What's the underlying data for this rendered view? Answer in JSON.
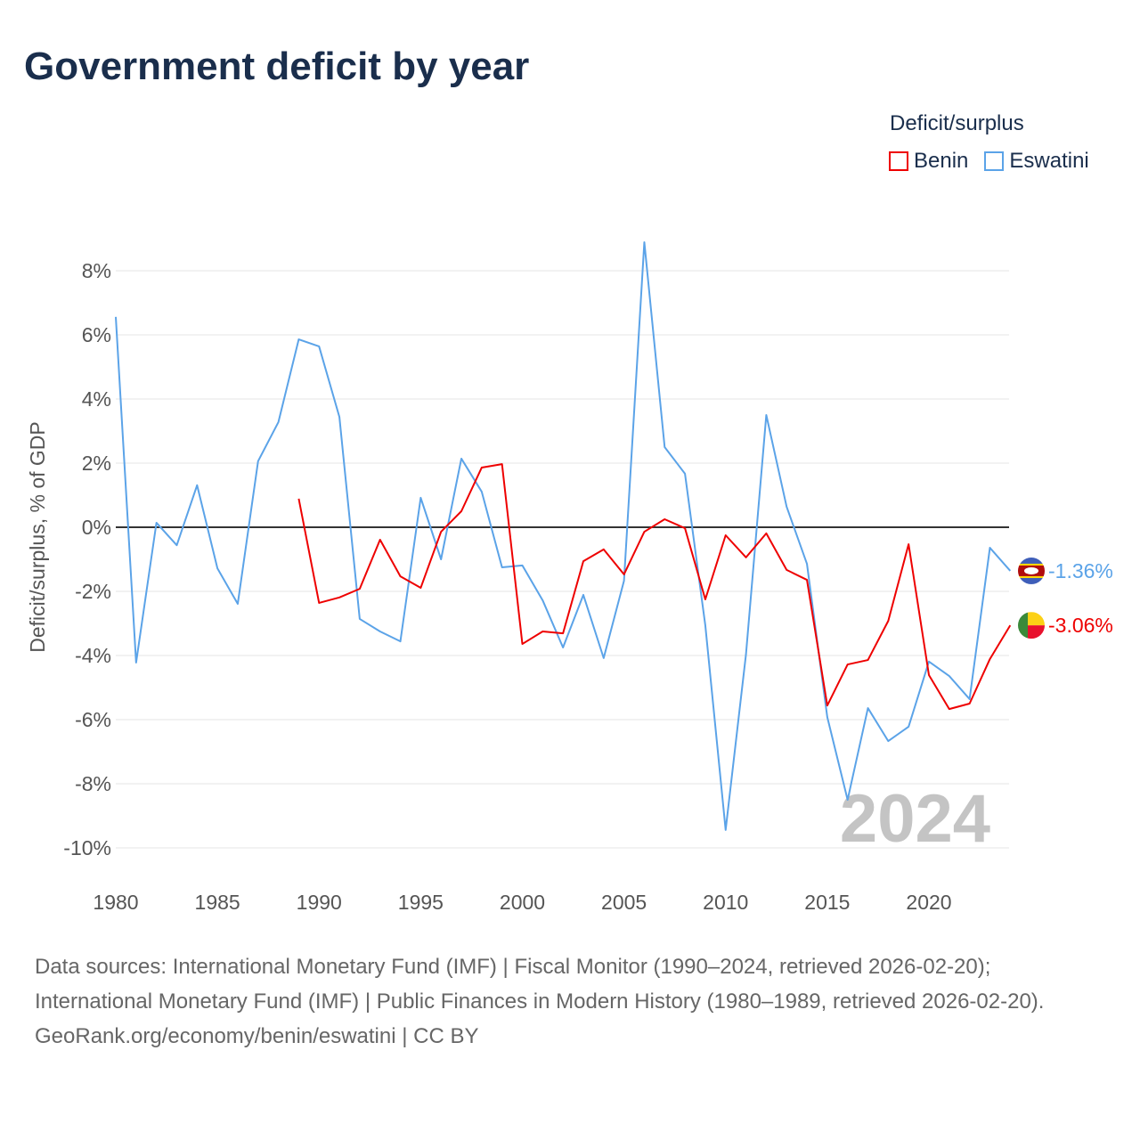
{
  "title": "Government deficit by year",
  "legend": {
    "title": "Deficit/surplus",
    "items": [
      {
        "name": "Benin",
        "color": "#ee0000"
      },
      {
        "name": "Eswatini",
        "color": "#5ba3e8"
      }
    ]
  },
  "footer": {
    "sources": "Data sources: International Monetary Fund (IMF) | Fiscal Monitor (1990–2024, retrieved 2026-02-20); International Monetary Fund (IMF) | Public Finances in Modern History (1980–1989, retrieved 2026-02-20).",
    "credit": "GeoRank.org/economy/benin/eswatini | CC BY"
  },
  "chart_data": {
    "type": "line",
    "title": "Government deficit by year",
    "xlabel": "",
    "ylabel": "Deficit/surplus, % of GDP",
    "xlim": [
      1980,
      2024
    ],
    "ylim": [
      -11,
      9
    ],
    "x_ticks": [
      "1980",
      "1985",
      "1990",
      "1995",
      "2000",
      "2005",
      "2010",
      "2015",
      "2020"
    ],
    "y_ticks": [
      "8%",
      "6%",
      "4%",
      "2%",
      "0%",
      "-2%",
      "-4%",
      "-6%",
      "-8%",
      "-10%"
    ],
    "y_tick_values": [
      8,
      6,
      4,
      2,
      0,
      -2,
      -4,
      -6,
      -8,
      -10
    ],
    "year_label": "2024",
    "series": [
      {
        "name": "Eswatini",
        "color": "#5ba3e8",
        "start": 1980,
        "end_label": "-1.36%",
        "values": [
          6.56,
          -4.22,
          0.14,
          -0.56,
          1.31,
          -1.28,
          -2.39,
          2.06,
          3.28,
          5.86,
          5.64,
          3.44,
          -2.86,
          -3.25,
          -3.56,
          0.92,
          -1.0,
          2.14,
          1.11,
          -1.25,
          -1.19,
          -2.28,
          -3.75,
          -2.11,
          -4.08,
          -1.67,
          8.89,
          2.5,
          1.67,
          -3.06,
          -9.44,
          -3.97,
          3.5,
          0.64,
          -1.14,
          -5.92,
          -8.5,
          -5.64,
          -6.67,
          -6.22,
          -4.19,
          -4.64,
          -5.36,
          -0.64,
          -1.36
        ]
      },
      {
        "name": "Benin",
        "color": "#ee0000",
        "start": 1989,
        "end_label": "-3.06%",
        "values": [
          0.89,
          -2.36,
          -2.19,
          -1.92,
          -0.39,
          -1.53,
          -1.89,
          -0.14,
          0.5,
          1.86,
          1.97,
          -3.64,
          -3.25,
          -3.31,
          -1.06,
          -0.69,
          -1.47,
          -0.14,
          0.25,
          -0.03,
          -2.25,
          -0.25,
          -0.94,
          -0.19,
          -1.33,
          -1.64,
          -5.56,
          -4.28,
          -4.14,
          -2.92,
          -0.53,
          -4.61,
          -5.67,
          -5.5,
          -4.11,
          -3.06
        ]
      }
    ]
  }
}
